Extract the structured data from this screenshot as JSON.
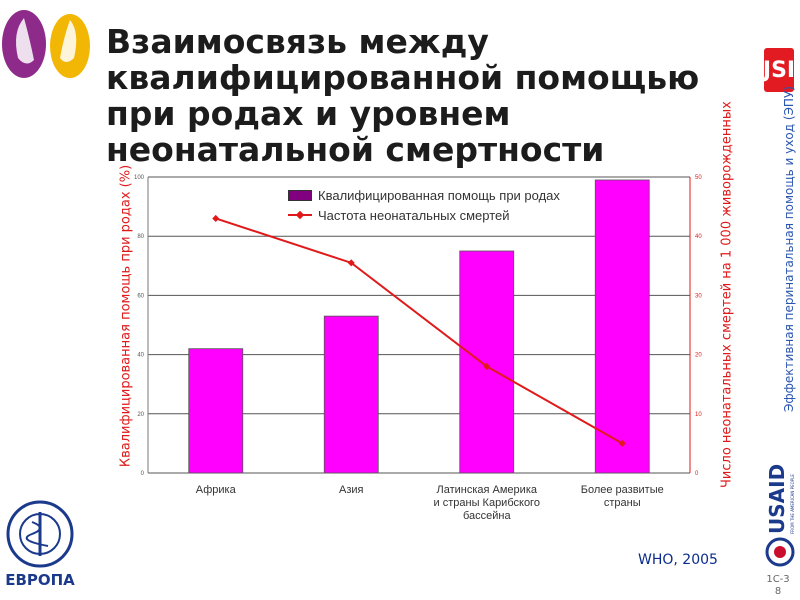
{
  "title": "Взаимосвязь между\nквалифицированной помощью\nпри родах и уровнем\nнеонатальной смертности",
  "side_text": "Эффективная перинатальная помощь и уход (ЭПУ)",
  "logos": {
    "jsi": "JSI",
    "usaid": "USAID",
    "usaid_tagline": "FROM THE AMERICAN PEOPLE",
    "who_region": "ЕВРОПА"
  },
  "source": "WHO, 2005",
  "page_number": "1С-3\n8",
  "colors": {
    "bar": "#ff00ff",
    "line": "#e01a1a",
    "title": "#1c1c1c",
    "side": "#2b56b0",
    "source": "#0b2c8c"
  },
  "chart_data": {
    "type": "bar",
    "categories": [
      "Африка",
      "Азия",
      "Латинская Америка\nи страны Карибского\nбассейна",
      "Более развитые\nстраны"
    ],
    "series": [
      {
        "name": "Квалифицированная помощь при родах",
        "type": "bar",
        "axis": "left",
        "values": [
          42,
          53,
          75,
          99
        ]
      },
      {
        "name": "Частота неонатальных смертей",
        "type": "line",
        "axis": "right",
        "values": [
          43,
          35.5,
          18,
          5
        ]
      }
    ],
    "ylabel_left": "Квалифицированная помощь при родах (%)",
    "ylabel_right": "Число неонатальных смертей на 1 000 живорожденных",
    "ylim_left": [
      0,
      100
    ],
    "ylim_right": [
      0,
      50
    ],
    "yticks_left": [
      "0",
      "20",
      "40",
      "60",
      "80",
      "100"
    ],
    "yticks_right": [
      "0",
      "10",
      "20",
      "30",
      "40",
      "50"
    ],
    "grid": true,
    "legend": "top-center"
  }
}
